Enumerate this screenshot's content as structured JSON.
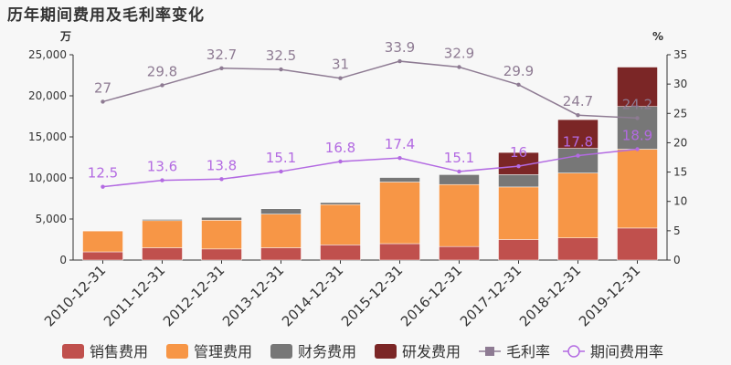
{
  "chart_data": {
    "type": "bar",
    "title": "历年期间费用及毛利率变化",
    "y_left_unit": "万",
    "y_right_unit": "%",
    "categories": [
      "2010-12-31",
      "2011-12-31",
      "2012-12-31",
      "2013-12-31",
      "2014-12-31",
      "2015-12-31",
      "2016-12-31",
      "2017-12-31",
      "2018-12-31",
      "2019-12-31"
    ],
    "ylim_left": [
      0,
      25000
    ],
    "ylim_right": [
      0,
      35
    ],
    "left_ticks": [
      "0",
      "5,000",
      "10,000",
      "15,000",
      "20,000",
      "25,000"
    ],
    "right_ticks": [
      "0",
      "5",
      "10",
      "15",
      "20",
      "25",
      "30",
      "35"
    ],
    "stacked_series": [
      {
        "name": "销售费用",
        "color": "#c0504d",
        "values": [
          1000,
          1500,
          1350,
          1500,
          1850,
          2000,
          1650,
          2500,
          2700,
          3900
        ]
      },
      {
        "name": "管理费用",
        "color": "#f79646",
        "values": [
          2550,
          3300,
          3500,
          4100,
          4900,
          7500,
          7550,
          6400,
          7900,
          9600
        ]
      },
      {
        "name": "财务费用",
        "color": "#777777",
        "values": [
          50,
          150,
          350,
          650,
          250,
          550,
          1200,
          1500,
          3000,
          5200
        ]
      },
      {
        "name": "研发费用",
        "color": "#7b2626",
        "values": [
          0,
          0,
          0,
          0,
          0,
          0,
          0,
          2700,
          3500,
          4800
        ]
      }
    ],
    "line_series": [
      {
        "name": "毛利率",
        "color": "#8e7b93",
        "values": [
          27,
          29.8,
          32.7,
          32.5,
          31,
          33.9,
          32.9,
          29.9,
          24.7,
          24.2
        ],
        "labels": [
          "27",
          "29.8",
          "32.7",
          "32.5",
          "31",
          "33.9",
          "32.9",
          "29.9",
          "24.7",
          "24.2"
        ]
      },
      {
        "name": "期间费用率",
        "color": "#b36ae2",
        "values": [
          12.5,
          13.6,
          13.8,
          15.1,
          16.8,
          17.4,
          15.1,
          16,
          17.8,
          18.9
        ],
        "labels": [
          "12.5",
          "13.6",
          "13.8",
          "15.1",
          "16.8",
          "17.4",
          "15.1",
          "16",
          "17.8",
          "18.9"
        ]
      }
    ],
    "legend_position": "bottom",
    "grid": false
  }
}
